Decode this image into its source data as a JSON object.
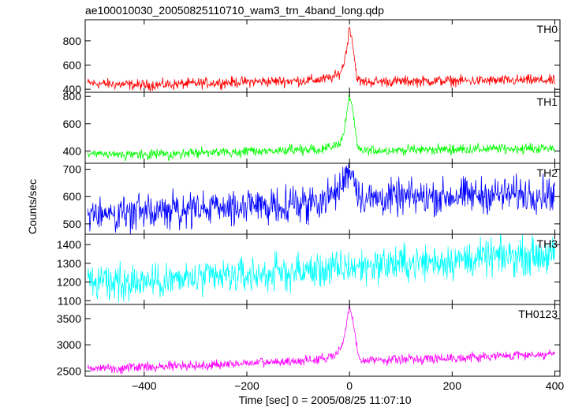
{
  "chart_data": {
    "type": "line",
    "title": "ae100010030_20050825110710_wam3_trn_4band_long.qdp",
    "xlabel": "Time [sec] 0 = 2005/08/25 11:07:10",
    "ylabel": "Counts/sec",
    "xlim": [
      -515,
      410
    ],
    "x_ticks": [
      -400,
      -200,
      0,
      200,
      400
    ],
    "x_tick_labels": [
      "−400",
      "−200",
      "0",
      "200",
      "400"
    ],
    "grid": false,
    "panels": [
      {
        "label": "TH0",
        "color": "#ff0000",
        "ylim": [
          375,
          975
        ],
        "y_ticks": [
          400,
          600,
          800
        ],
        "series": {
          "x": [
            -510,
            -450,
            -400,
            -350,
            -300,
            -250,
            -200,
            -150,
            -100,
            -60,
            -40,
            -25,
            -15,
            -10,
            -5,
            0,
            5,
            10,
            15,
            20,
            25,
            40,
            80,
            150,
            200,
            250,
            300,
            350,
            400
          ],
          "y": [
            450,
            440,
            435,
            440,
            448,
            455,
            462,
            465,
            470,
            478,
            490,
            510,
            560,
            640,
            750,
            920,
            820,
            640,
            490,
            465,
            460,
            462,
            465,
            468,
            470,
            470,
            472,
            475,
            470
          ],
          "noise": 22
        }
      },
      {
        "label": "TH1",
        "color": "#00ff00",
        "ylim": [
          310,
          830
        ],
        "y_ticks": [
          400,
          600,
          800
        ],
        "series": {
          "x": [
            -510,
            -450,
            -400,
            -350,
            -300,
            -250,
            -200,
            -150,
            -100,
            -60,
            -40,
            -25,
            -15,
            -10,
            -5,
            0,
            5,
            10,
            15,
            20,
            25,
            40,
            80,
            150,
            200,
            250,
            300,
            350,
            400
          ],
          "y": [
            375,
            370,
            372,
            378,
            385,
            390,
            395,
            400,
            405,
            412,
            425,
            445,
            480,
            560,
            680,
            800,
            740,
            580,
            430,
            405,
            402,
            404,
            406,
            410,
            412,
            414,
            416,
            418,
            420
          ],
          "noise": 18
        }
      },
      {
        "label": "TH2",
        "color": "#0000ff",
        "ylim": [
          462,
          722
        ],
        "y_ticks": [
          500,
          600,
          700
        ],
        "series": {
          "x": [
            -510,
            -450,
            -400,
            -350,
            -300,
            -250,
            -200,
            -150,
            -100,
            -60,
            -40,
            -25,
            -15,
            -10,
            -5,
            0,
            5,
            10,
            15,
            20,
            25,
            40,
            80,
            150,
            200,
            250,
            300,
            350,
            400
          ],
          "y": [
            535,
            538,
            542,
            548,
            552,
            558,
            562,
            568,
            575,
            585,
            598,
            615,
            640,
            665,
            690,
            705,
            690,
            660,
            630,
            605,
            595,
            592,
            595,
            598,
            602,
            605,
            608,
            610,
            612
          ],
          "noise": 32
        }
      },
      {
        "label": "TH3",
        "color": "#00ffff",
        "ylim": [
          1080,
          1455
        ],
        "y_ticks": [
          1100,
          1200,
          1300,
          1400
        ],
        "series": {
          "x": [
            -510,
            -450,
            -400,
            -350,
            -300,
            -250,
            -200,
            -150,
            -100,
            -60,
            -40,
            -25,
            -15,
            -10,
            -5,
            0,
            5,
            10,
            15,
            20,
            25,
            40,
            80,
            150,
            200,
            250,
            300,
            350,
            400
          ],
          "y": [
            1195,
            1200,
            1205,
            1210,
            1215,
            1225,
            1235,
            1245,
            1255,
            1262,
            1265,
            1268,
            1270,
            1272,
            1275,
            1285,
            1282,
            1278,
            1275,
            1280,
            1285,
            1290,
            1295,
            1305,
            1315,
            1325,
            1335,
            1340,
            1345
          ],
          "noise": 48
        }
      },
      {
        "label": "TH0123",
        "color": "#ff00ff",
        "ylim": [
          2400,
          3770
        ],
        "y_ticks": [
          2500,
          3000,
          3500
        ],
        "series": {
          "x": [
            -510,
            -450,
            -400,
            -350,
            -300,
            -250,
            -200,
            -150,
            -100,
            -60,
            -40,
            -25,
            -15,
            -10,
            -5,
            0,
            5,
            10,
            15,
            20,
            25,
            40,
            80,
            150,
            200,
            250,
            300,
            350,
            400
          ],
          "y": [
            2550,
            2560,
            2575,
            2590,
            2605,
            2625,
            2645,
            2665,
            2690,
            2720,
            2760,
            2830,
            2950,
            3150,
            3450,
            3700,
            3550,
            3250,
            2900,
            2720,
            2700,
            2710,
            2720,
            2735,
            2750,
            2765,
            2790,
            2810,
            2830
          ],
          "noise": 45
        }
      }
    ]
  }
}
